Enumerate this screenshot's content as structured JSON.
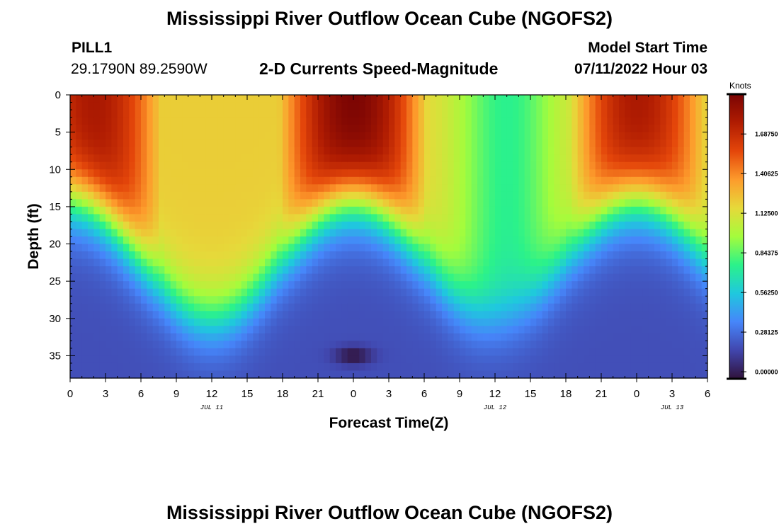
{
  "header": {
    "title": "Mississippi River Outflow Ocean Cube (NGOFS2)",
    "station_id": "PILL1",
    "station_coords": "29.1790N  89.2590W",
    "subtitle": "2-D Currents Speed-Magnitude",
    "model_start_label": "Model Start Time",
    "model_start_value": "07/11/2022 Hour 03"
  },
  "footer": {
    "title": "Mississippi River Outflow Ocean Cube (NGOFS2)"
  },
  "chart_data": {
    "type": "heatmap",
    "xlabel": "Forecast Time(Z)",
    "ylabel": "Depth (ft)",
    "x_ticks": [
      "0",
      "3",
      "6",
      "9",
      "12",
      "15",
      "18",
      "21",
      "0",
      "3",
      "6",
      "9",
      "12",
      "15",
      "18",
      "21",
      "0",
      "3",
      "6"
    ],
    "x_range_hours": [
      0,
      54
    ],
    "date_labels": [
      {
        "label": "JUL 11",
        "hour": 12
      },
      {
        "label": "JUL 12",
        "hour": 36
      },
      {
        "label": "JUL 13",
        "hour": 51
      }
    ],
    "y_ticks": [
      0,
      5,
      10,
      15,
      20,
      25,
      30,
      35
    ],
    "ylim": [
      0,
      38
    ],
    "colorbar": {
      "unit": "Knots",
      "ticks": [
        "1.68750",
        "1.40625",
        "1.12500",
        "0.84375",
        "0.56250",
        "0.28125",
        "0.00000"
      ],
      "tick_values": [
        1.6875,
        1.40625,
        1.125,
        0.84375,
        0.5625,
        0.28125,
        0.0
      ],
      "range": [
        -0.05,
        1.97
      ],
      "colors": [
        "#30123b",
        "#4146ad",
        "#4686fa",
        "#1fc8de",
        "#2bf28a",
        "#a4fc3c",
        "#e6d93a",
        "#fd9b2c",
        "#e4460a",
        "#b01c02",
        "#7a0403"
      ]
    },
    "field": {
      "description_of_structure": "surface max currents oscillating with time",
      "surface_speed_peaks": [
        {
          "hour": 2,
          "speed": 1.8
        },
        {
          "hour": 24,
          "speed": 1.97
        },
        {
          "hour": 48,
          "speed": 1.8
        }
      ],
      "surface_speed_minimum": {
        "hour": 37,
        "speed": 0.75
      },
      "transition_depth_ft": {
        "min": 14,
        "max": 30,
        "period_hours": 24
      },
      "deep_speed": 0.18,
      "deep_min_point": {
        "hour": 24,
        "depth": 35,
        "speed": -0.05
      }
    }
  }
}
